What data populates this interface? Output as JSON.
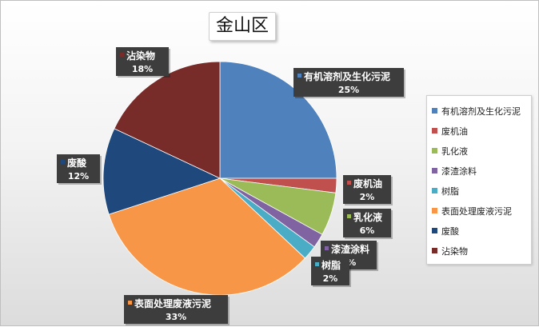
{
  "chart_data": {
    "type": "pie",
    "title": "金山区",
    "slices": [
      {
        "name": "有机溶剂及生化污泥",
        "value": 25,
        "pct_label": "25%",
        "color": "#4f81bd"
      },
      {
        "name": "废机油",
        "value": 2,
        "pct_label": "2%",
        "color": "#c0504d"
      },
      {
        "name": "乳化液",
        "value": 6,
        "pct_label": "6%",
        "color": "#9bbb59"
      },
      {
        "name": "漆渣涂料",
        "value": 2,
        "pct_label": "2%",
        "color": "#8064a2"
      },
      {
        "name": "树脂",
        "value": 2,
        "pct_label": "2%",
        "color": "#4bacc6"
      },
      {
        "name": "表面处理废液污泥",
        "value": 33,
        "pct_label": "33%",
        "color": "#f79646"
      },
      {
        "name": "废酸",
        "value": 12,
        "pct_label": "12%",
        "color": "#1f497d"
      },
      {
        "name": "沾染物",
        "value": 18,
        "pct_label": "18%",
        "color": "#772c2a"
      }
    ],
    "start_angle": "12 o'clock",
    "direction": "clockwise",
    "legend_position": "right",
    "data_labels": "category name and percentage, dark callout boxes"
  }
}
